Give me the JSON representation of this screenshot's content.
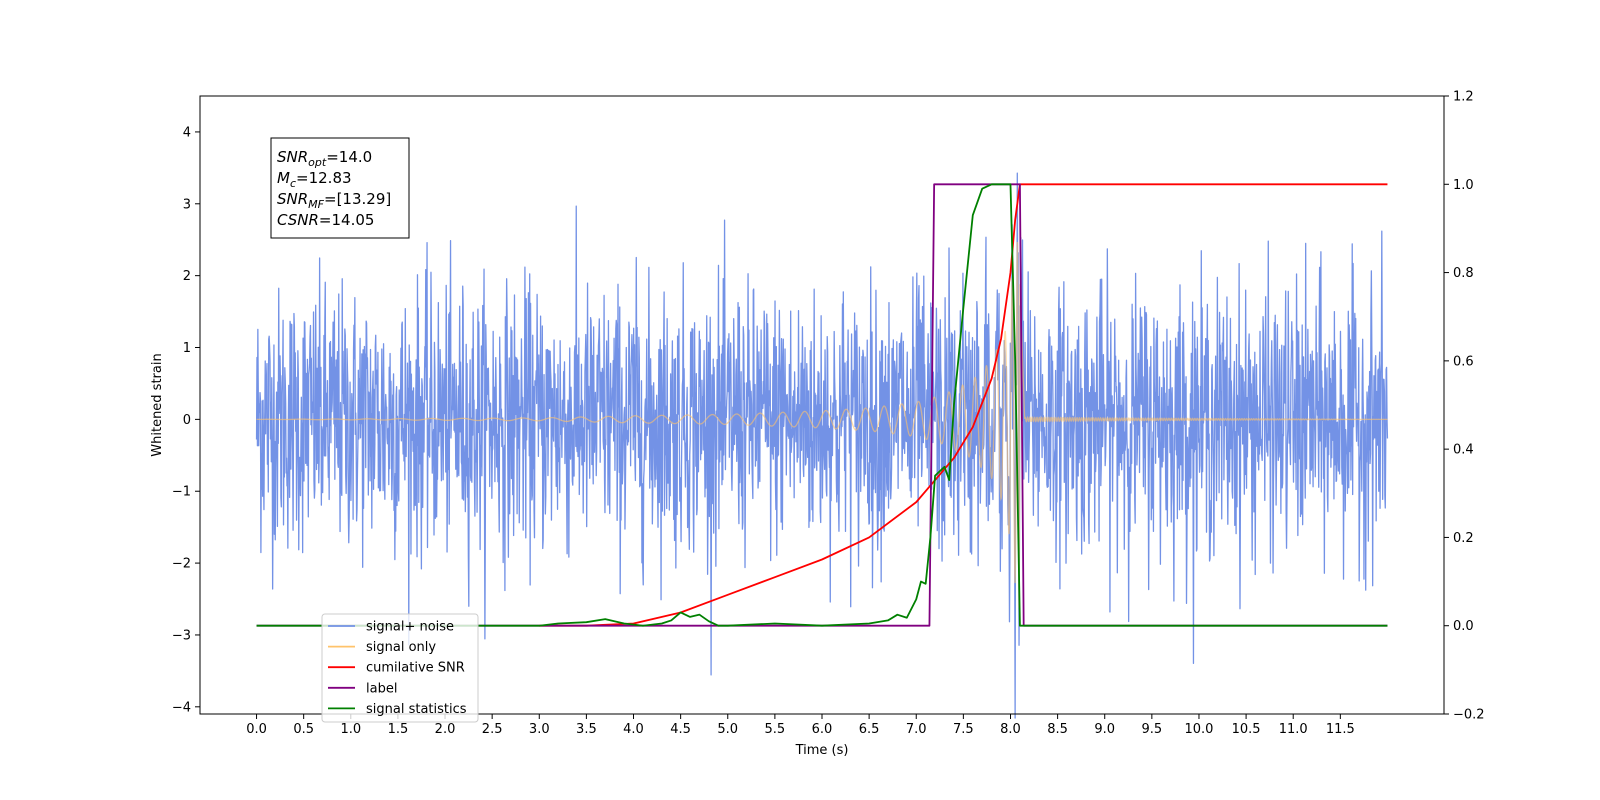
{
  "chart_data": {
    "type": "line",
    "xlabel": "Time (s)",
    "ylabel": "Whitened strain",
    "xlim": [
      -0.6,
      12.6
    ],
    "ylim": [
      -4.1,
      4.5
    ],
    "y2lim": [
      -0.2,
      1.2
    ],
    "xticks": [
      "0.0",
      "0.5",
      "1.0",
      "1.5",
      "2.0",
      "2.5",
      "3.0",
      "3.5",
      "4.0",
      "4.5",
      "5.0",
      "5.5",
      "6.0",
      "6.5",
      "7.0",
      "7.5",
      "8.0",
      "8.5",
      "9.0",
      "9.5",
      "10.0",
      "10.5",
      "11.0",
      "11.5"
    ],
    "yticks": [
      "4",
      "3",
      "2",
      "1",
      "0",
      "−1",
      "−2",
      "−3",
      "−4"
    ],
    "y2ticks": [
      "1.2",
      "1.0",
      "0.8",
      "0.6",
      "0.4",
      "0.2",
      "0.0",
      "−0.2"
    ],
    "annotation": [
      {
        "name": "SNR",
        "sub": "opt",
        "value": "=14.0"
      },
      {
        "name": "M",
        "sub": "c",
        "value": "=12.83"
      },
      {
        "name": "SNR",
        "sub": "MF",
        "value": "=[13.29]"
      },
      {
        "name": "CSNR",
        "sub": "",
        "value": "=14.05"
      }
    ],
    "series": [
      {
        "name": "signal+ noise",
        "color": "#7392e6",
        "axis": "left",
        "noise_sigma": 0.72,
        "x_range": [
          0.0,
          12.0
        ]
      },
      {
        "name": "signal only",
        "color": "#ffc36b",
        "axis": "left",
        "merger_time": 8.1,
        "envelope": {
          "x": [
            0.0,
            3.0,
            4.0,
            5.0,
            6.0,
            6.5,
            7.0,
            7.3,
            7.6,
            7.8,
            7.95,
            8.05,
            8.1,
            8.15,
            9.0,
            12.0
          ],
          "y": [
            0.0,
            0.02,
            0.05,
            0.07,
            0.12,
            0.16,
            0.24,
            0.35,
            0.55,
            0.82,
            1.25,
            2.3,
            2.7,
            0.03,
            0.02,
            0.0
          ]
        }
      },
      {
        "name": "cumilative SNR",
        "color": "#ff0000",
        "axis": "right",
        "x": [
          3.0,
          3.5,
          4.0,
          4.5,
          5.0,
          5.5,
          6.0,
          6.5,
          7.0,
          7.2,
          7.4,
          7.6,
          7.8,
          7.9,
          8.0,
          8.05,
          8.1,
          12.0
        ],
        "y": [
          0.0,
          0.0,
          0.005,
          0.03,
          0.07,
          0.11,
          0.15,
          0.2,
          0.28,
          0.33,
          0.38,
          0.45,
          0.56,
          0.65,
          0.8,
          0.92,
          1.0,
          1.0
        ]
      },
      {
        "name": "label",
        "color": "#800080",
        "axis": "right",
        "x": [
          0.0,
          7.14,
          7.19,
          8.1,
          8.14,
          12.0
        ],
        "y": [
          0.0,
          0.0,
          1.0,
          1.0,
          0.0,
          0.0
        ]
      },
      {
        "name": "signal statistics",
        "color": "#008000",
        "axis": "right",
        "x": [
          0.0,
          3.0,
          3.2,
          3.5,
          3.7,
          3.9,
          4.1,
          4.3,
          4.4,
          4.5,
          4.6,
          4.7,
          4.8,
          4.9,
          5.0,
          5.5,
          6.0,
          6.5,
          6.7,
          6.8,
          6.9,
          7.0,
          7.05,
          7.1,
          7.15,
          7.2,
          7.3,
          7.35,
          7.4,
          7.5,
          7.6,
          7.7,
          7.8,
          7.9,
          8.0,
          8.05,
          8.1,
          8.15,
          12.0
        ],
        "y": [
          0.0,
          0.0,
          0.005,
          0.008,
          0.015,
          0.005,
          0.0,
          0.005,
          0.012,
          0.03,
          0.02,
          0.025,
          0.01,
          0.0,
          0.0,
          0.005,
          0.0,
          0.005,
          0.012,
          0.025,
          0.018,
          0.06,
          0.1,
          0.095,
          0.2,
          0.34,
          0.36,
          0.33,
          0.5,
          0.72,
          0.93,
          0.99,
          1.0,
          1.0,
          1.0,
          0.6,
          0.0,
          0.0,
          0.0
        ]
      }
    ],
    "legend": {
      "placement": "lower left",
      "entries": [
        "signal+ noise",
        "signal only",
        "cumilative SNR",
        "label",
        "signal statistics"
      ]
    },
    "grid": false
  }
}
